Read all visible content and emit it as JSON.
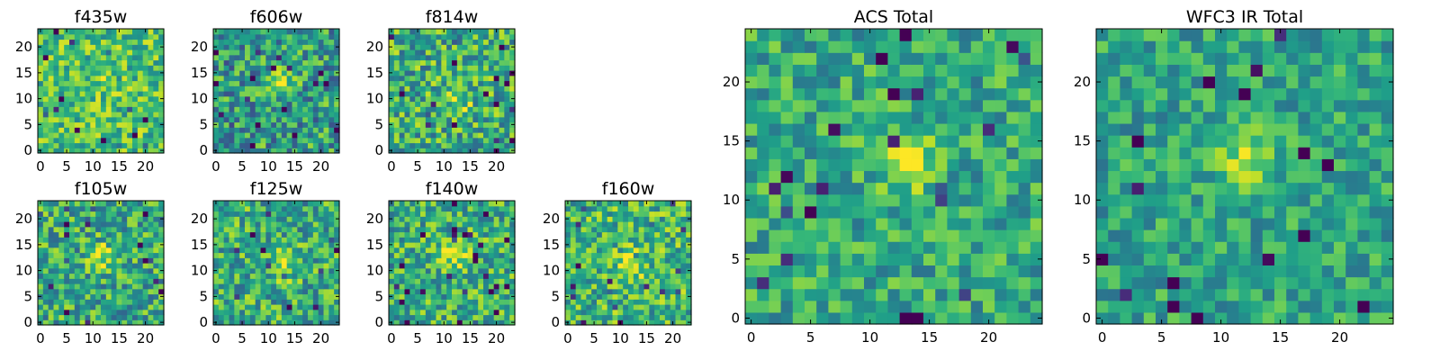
{
  "chart_data": [
    {
      "type": "heatmap",
      "title": "f435w",
      "grid": [
        24,
        24
      ],
      "xlim": [
        0,
        24
      ],
      "ylim": [
        0,
        24
      ],
      "colormap": "viridis",
      "x_ticks": [
        "0",
        "5",
        "10",
        "15",
        "20"
      ],
      "y_ticks": [
        "0",
        "5",
        "10",
        "15",
        "20"
      ],
      "seed": 11,
      "blob": {
        "center": [
          12,
          13
        ],
        "amplitude": 0.05
      },
      "base": 0.7,
      "noise": 0.25
    },
    {
      "type": "heatmap",
      "title": "f606w",
      "grid": [
        24,
        24
      ],
      "xlim": [
        0,
        24
      ],
      "ylim": [
        0,
        24
      ],
      "colormap": "viridis",
      "x_ticks": [
        "0",
        "5",
        "10",
        "15",
        "20"
      ],
      "y_ticks": [
        "0",
        "5",
        "10",
        "15",
        "20"
      ],
      "seed": 23,
      "blob": {
        "center": [
          12,
          13
        ],
        "amplitude": 0.35
      },
      "base": 0.55,
      "noise": 0.3
    },
    {
      "type": "heatmap",
      "title": "f814w",
      "grid": [
        24,
        24
      ],
      "xlim": [
        0,
        24
      ],
      "ylim": [
        0,
        24
      ],
      "colormap": "viridis",
      "x_ticks": [
        "0",
        "5",
        "10",
        "15",
        "20"
      ],
      "y_ticks": [
        "0",
        "5",
        "10",
        "15",
        "20"
      ],
      "seed": 37,
      "blob": {
        "center": [
          13,
          10
        ],
        "amplitude": 0.25
      },
      "base": 0.62,
      "noise": 0.3
    },
    {
      "type": "heatmap",
      "title": "f105w",
      "grid": [
        24,
        24
      ],
      "xlim": [
        0,
        24
      ],
      "ylim": [
        0,
        24
      ],
      "colormap": "viridis",
      "x_ticks": [
        "0",
        "5",
        "10",
        "15",
        "20"
      ],
      "y_ticks": [
        "0",
        "5",
        "10",
        "15",
        "20"
      ],
      "seed": 41,
      "blob": {
        "center": [
          12,
          13
        ],
        "amplitude": 0.3
      },
      "base": 0.6,
      "noise": 0.28
    },
    {
      "type": "heatmap",
      "title": "f125w",
      "grid": [
        24,
        24
      ],
      "xlim": [
        0,
        24
      ],
      "ylim": [
        0,
        24
      ],
      "colormap": "viridis",
      "x_ticks": [
        "0",
        "5",
        "10",
        "15",
        "20"
      ],
      "y_ticks": [
        "0",
        "5",
        "10",
        "15",
        "20"
      ],
      "seed": 53,
      "blob": {
        "center": [
          13,
          11
        ],
        "amplitude": 0.3
      },
      "base": 0.62,
      "noise": 0.28
    },
    {
      "type": "heatmap",
      "title": "f140w",
      "grid": [
        24,
        24
      ],
      "xlim": [
        0,
        24
      ],
      "ylim": [
        0,
        24
      ],
      "colormap": "viridis",
      "x_ticks": [
        "0",
        "5",
        "10",
        "15",
        "20"
      ],
      "y_ticks": [
        "0",
        "5",
        "10",
        "15",
        "20"
      ],
      "seed": 67,
      "blob": {
        "center": [
          12,
          13
        ],
        "amplitude": 0.3
      },
      "base": 0.63,
      "noise": 0.27
    },
    {
      "type": "heatmap",
      "title": "f160w",
      "grid": [
        24,
        24
      ],
      "xlim": [
        0,
        24
      ],
      "ylim": [
        0,
        24
      ],
      "colormap": "viridis",
      "x_ticks": [
        "0",
        "5",
        "10",
        "15",
        "20"
      ],
      "y_ticks": [
        "0",
        "5",
        "10",
        "15",
        "20"
      ],
      "seed": 79,
      "blob": {
        "center": [
          12,
          11
        ],
        "amplitude": 0.3
      },
      "base": 0.66,
      "noise": 0.27
    },
    {
      "type": "heatmap",
      "title": "ACS Total",
      "grid": [
        25,
        25
      ],
      "xlim": [
        0,
        25
      ],
      "ylim": [
        0,
        25
      ],
      "colormap": "viridis",
      "x_ticks": [
        "0",
        "5",
        "10",
        "15",
        "20"
      ],
      "y_ticks": [
        "0",
        "5",
        "10",
        "15",
        "20"
      ],
      "seed": 97,
      "blob": {
        "center": [
          13,
          13
        ],
        "amplitude": 0.3
      },
      "base": 0.6,
      "noise": 0.22
    },
    {
      "type": "heatmap",
      "title": "WFC3 IR Total",
      "grid": [
        25,
        25
      ],
      "xlim": [
        0,
        25
      ],
      "ylim": [
        0,
        25
      ],
      "colormap": "viridis",
      "x_ticks": [
        "0",
        "5",
        "10",
        "15",
        "20"
      ],
      "y_ticks": [
        "0",
        "5",
        "10",
        "15",
        "20"
      ],
      "seed": 113,
      "blob": {
        "center": [
          12,
          13
        ],
        "amplitude": 0.35
      },
      "base": 0.58,
      "noise": 0.2
    }
  ]
}
